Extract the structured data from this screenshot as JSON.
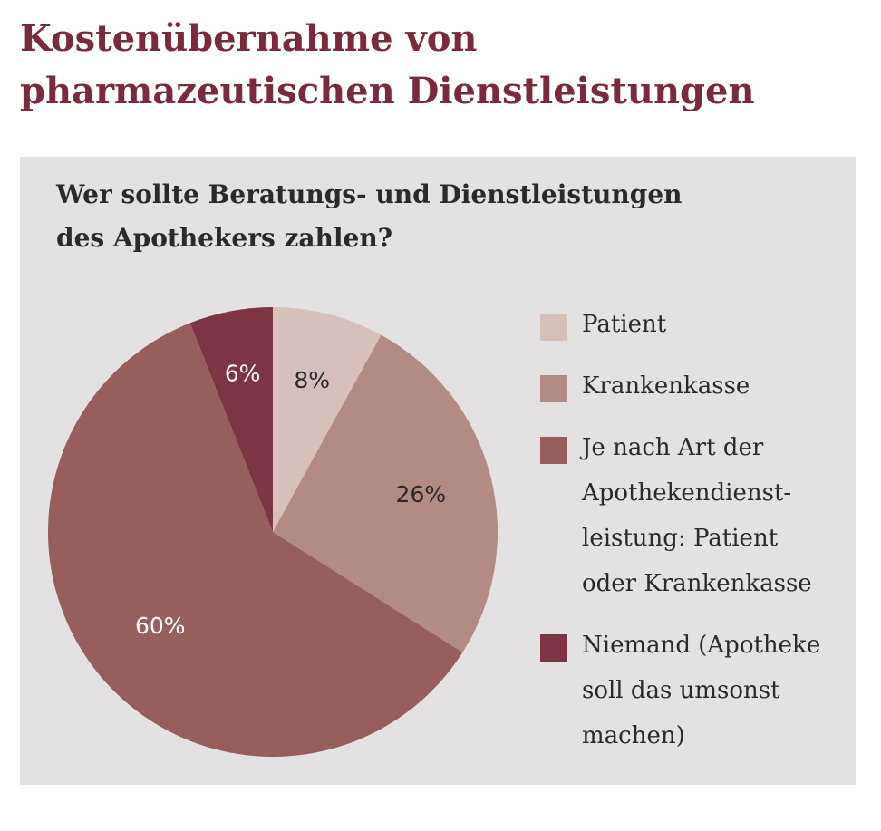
{
  "title_lines": [
    "Kostenübernahme von",
    "pharmazeutischen Dienstleistungen"
  ],
  "question_lines": [
    "Wer sollte Beratungs- und Dienstleistungen",
    "des Apothekers zahlen?"
  ],
  "chart_data": {
    "type": "pie",
    "title": "",
    "slices": [
      {
        "name": "Patient",
        "value": 8,
        "label": "8%",
        "color": "#d5c0ba"
      },
      {
        "name": "Krankenkasse",
        "value": 26,
        "label": "26%",
        "color": "#b38b85"
      },
      {
        "name": "Je nach Art der Apothekendienst-\nleistung: Patient\noder Krankenkasse",
        "value": 60,
        "label": "60%",
        "color": "#975e5e"
      },
      {
        "name": "Niemand (Apotheke\nsoll das umsonst\nmachen)",
        "value": 6,
        "label": "6%",
        "color": "#7d3544"
      }
    ],
    "label_colors": [
      "#2a2a2a",
      "#2a2a2a",
      "#ffffff",
      "#ffffff"
    ],
    "legend_position": "right"
  }
}
